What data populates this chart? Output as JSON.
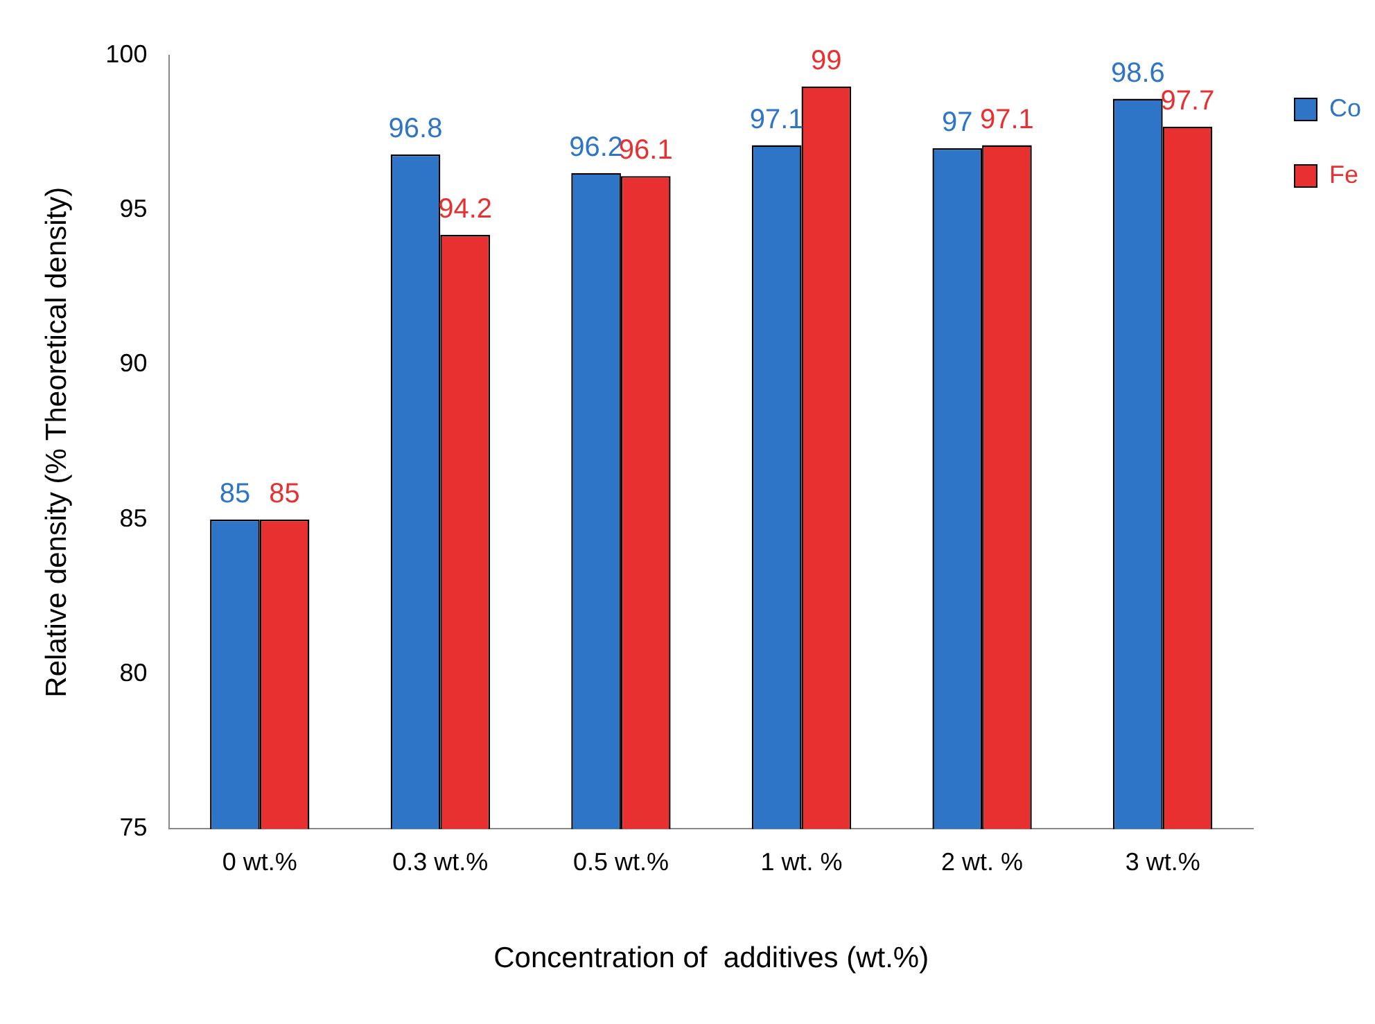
{
  "chart_data": {
    "type": "bar",
    "xlabel": "Concentration of  additives (wt.%)",
    "ylabel": "Relative density (% Theoretical density)",
    "categories": [
      "0 wt.%",
      "0.3 wt.%",
      "0.5 wt.%",
      "1 wt. %",
      "2 wt. %",
      "3 wt.%"
    ],
    "series": [
      {
        "name": "Co",
        "color": "#2e75c8",
        "values": [
          85,
          96.8,
          96.2,
          97.1,
          97,
          98.6
        ]
      },
      {
        "name": "Fe",
        "color": "#e83030",
        "values": [
          85,
          94.2,
          96.1,
          99,
          97.1,
          97.7
        ]
      }
    ],
    "ylim": [
      75,
      100
    ],
    "yticks": [
      75,
      80,
      85,
      90,
      95,
      100
    ],
    "grid": false,
    "legend": "top right",
    "data_labels": true
  }
}
